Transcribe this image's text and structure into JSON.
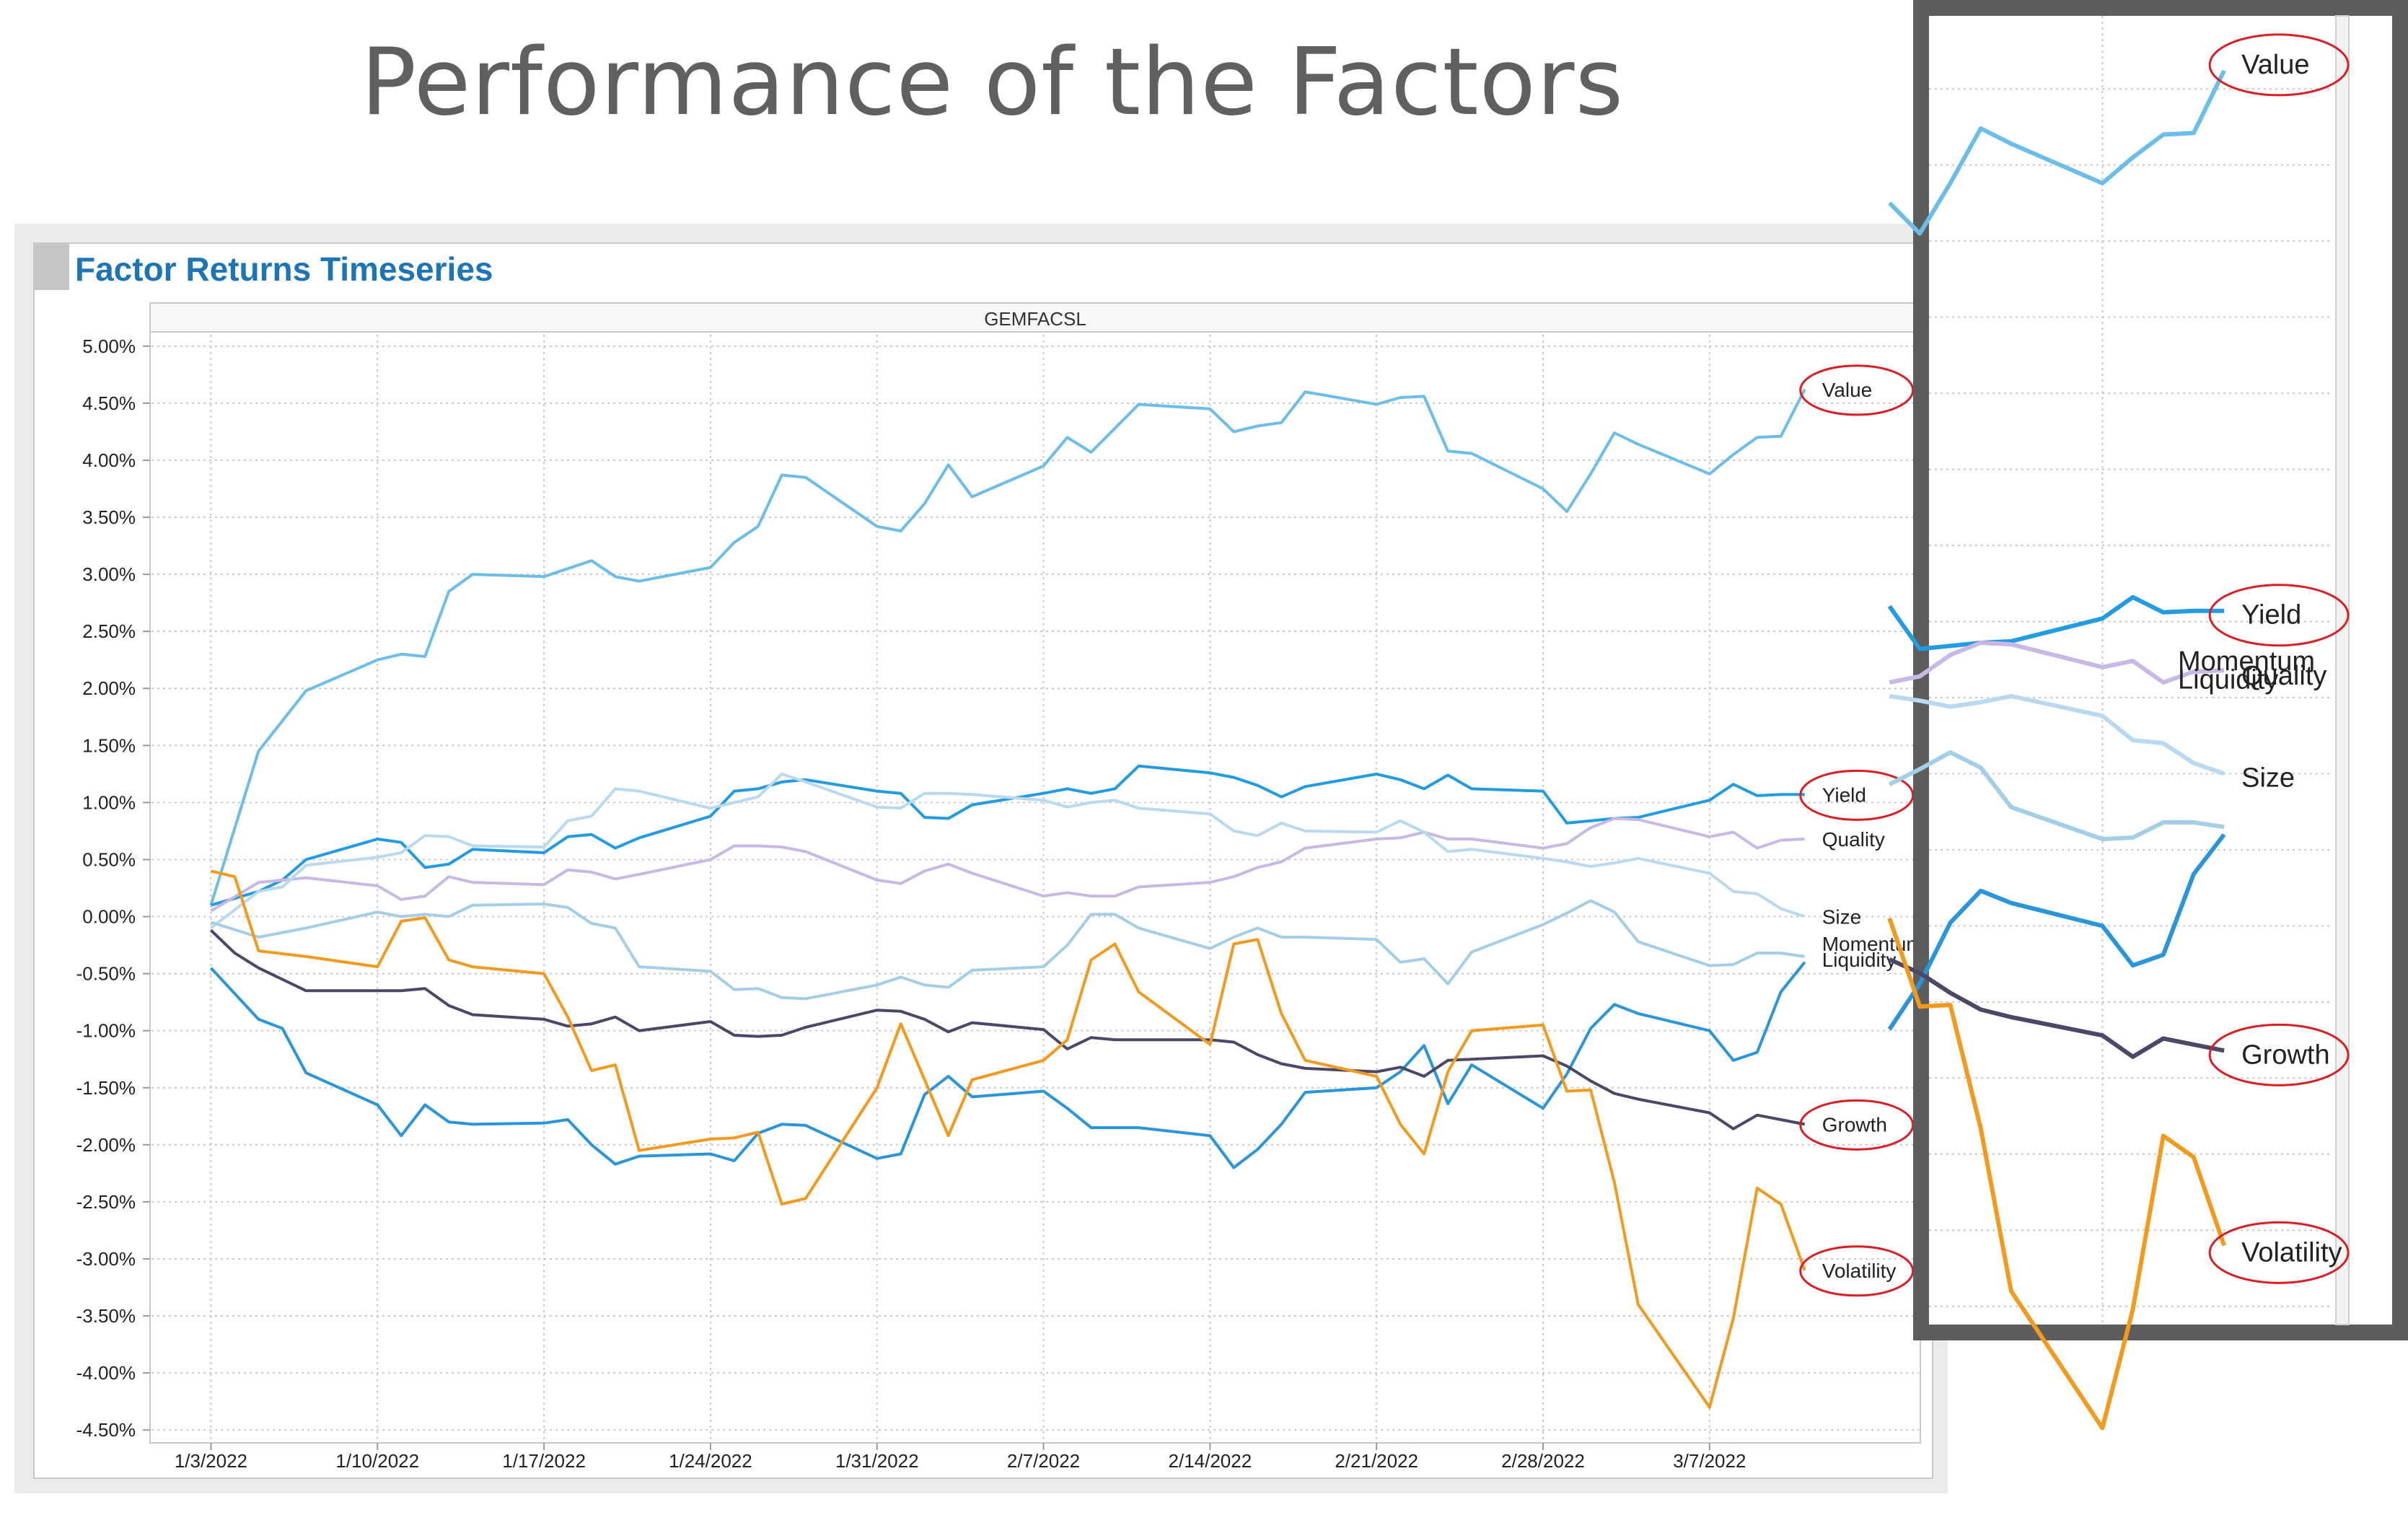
{
  "slide": {
    "title": "Performance of the Factors"
  },
  "panel": {
    "header": "Factor Returns Timeseries"
  },
  "colors": {
    "value": "#6cbde8",
    "yield": "#239be0",
    "quality": "#c7b9e4",
    "size": "#b8d9ee",
    "momentum": "#2a95d9",
    "liquidity": "#a4cde6",
    "growth": "#4b4867",
    "volatility": "#f29a1e",
    "annotation": "#d81f26",
    "grid": "#c9c9c9"
  },
  "chart_data": {
    "type": "line",
    "title": "GEMFACSL",
    "xlabel": "",
    "ylabel": "",
    "ylim": [
      -4.6,
      5.1
    ],
    "y_ticks": [
      "5.00%",
      "4.50%",
      "4.00%",
      "3.50%",
      "3.00%",
      "2.50%",
      "2.00%",
      "1.50%",
      "1.00%",
      "0.50%",
      "0.00%",
      "-0.50%",
      "-1.00%",
      "-1.50%",
      "-2.00%",
      "-2.50%",
      "-3.00%",
      "-3.50%",
      "-4.00%",
      "-4.50%"
    ],
    "y_tick_values": [
      5.0,
      4.5,
      4.0,
      3.5,
      3.0,
      2.5,
      2.0,
      1.5,
      1.0,
      0.5,
      0.0,
      -0.5,
      -1.0,
      -1.5,
      -2.0,
      -2.5,
      -3.0,
      -3.5,
      -4.0,
      -4.5
    ],
    "x_ticks": [
      "1/3/2022",
      "1/10/2022",
      "1/17/2022",
      "1/24/2022",
      "1/31/2022",
      "2/7/2022",
      "2/14/2022",
      "2/21/2022",
      "2/28/2022",
      "3/7/2022"
    ],
    "x_tick_values": [
      0,
      7,
      14,
      21,
      28,
      35,
      42,
      49,
      56,
      63
    ],
    "xlim": [
      -2.5,
      71.8
    ],
    "series": [
      {
        "name": "Value",
        "key": "value",
        "x": [
          0,
          2,
          4,
          7,
          8,
          9,
          10,
          11,
          14,
          15,
          16,
          17,
          18,
          21,
          22,
          23,
          24,
          25,
          28,
          29,
          30,
          31,
          32,
          35,
          36,
          37,
          38,
          39,
          42,
          43,
          44,
          45,
          46,
          49,
          50,
          51,
          52,
          53,
          56,
          57,
          58,
          59,
          60,
          63,
          64,
          65,
          66,
          67
        ],
        "values": [
          0.1,
          1.45,
          1.98,
          2.25,
          2.3,
          2.28,
          2.85,
          3.0,
          2.98,
          3.05,
          3.12,
          2.98,
          2.94,
          3.06,
          3.28,
          3.42,
          3.87,
          3.85,
          3.42,
          3.38,
          3.62,
          3.96,
          3.68,
          3.95,
          4.2,
          4.07,
          4.28,
          4.49,
          4.45,
          4.25,
          4.3,
          4.33,
          4.6,
          4.49,
          4.55,
          4.56,
          4.08,
          4.06,
          3.75,
          3.55,
          3.88,
          4.24,
          4.14,
          3.88,
          4.05,
          4.2,
          4.21,
          4.62
        ]
      },
      {
        "name": "Yield",
        "key": "yield",
        "x": [
          0,
          2,
          3,
          4,
          7,
          8,
          9,
          10,
          11,
          14,
          15,
          16,
          17,
          18,
          21,
          22,
          23,
          24,
          25,
          28,
          29,
          30,
          31,
          32,
          35,
          36,
          37,
          38,
          39,
          42,
          43,
          44,
          45,
          46,
          49,
          50,
          51,
          52,
          53,
          56,
          57,
          58,
          59,
          60,
          63,
          64,
          65,
          66,
          67
        ],
        "values": [
          0.1,
          0.22,
          0.32,
          0.5,
          0.68,
          0.65,
          0.43,
          0.46,
          0.59,
          0.56,
          0.7,
          0.72,
          0.6,
          0.69,
          0.88,
          1.1,
          1.12,
          1.18,
          1.2,
          1.1,
          1.08,
          0.87,
          0.86,
          0.98,
          1.08,
          1.12,
          1.08,
          1.12,
          1.32,
          1.26,
          1.22,
          1.15,
          1.05,
          1.14,
          1.25,
          1.2,
          1.12,
          1.24,
          1.12,
          1.1,
          0.82,
          0.84,
          0.86,
          0.87,
          1.02,
          1.16,
          1.06,
          1.07,
          1.07
        ]
      },
      {
        "name": "Quality",
        "key": "quality",
        "x": [
          0,
          2,
          4,
          7,
          8,
          9,
          10,
          11,
          14,
          15,
          16,
          17,
          18,
          21,
          22,
          23,
          24,
          25,
          28,
          29,
          30,
          31,
          32,
          35,
          36,
          37,
          38,
          39,
          42,
          43,
          44,
          45,
          46,
          49,
          50,
          51,
          52,
          53,
          56,
          57,
          58,
          59,
          60,
          63,
          64,
          65,
          66,
          67
        ],
        "values": [
          0.05,
          0.3,
          0.34,
          0.27,
          0.15,
          0.18,
          0.35,
          0.3,
          0.28,
          0.41,
          0.39,
          0.33,
          0.37,
          0.5,
          0.62,
          0.62,
          0.61,
          0.57,
          0.32,
          0.29,
          0.4,
          0.46,
          0.38,
          0.18,
          0.21,
          0.18,
          0.18,
          0.26,
          0.3,
          0.35,
          0.43,
          0.48,
          0.6,
          0.68,
          0.69,
          0.74,
          0.68,
          0.68,
          0.6,
          0.64,
          0.78,
          0.86,
          0.85,
          0.7,
          0.74,
          0.6,
          0.67,
          0.68
        ]
      },
      {
        "name": "Size",
        "key": "size",
        "x": [
          0,
          2,
          3,
          4,
          7,
          8,
          9,
          10,
          11,
          14,
          15,
          16,
          17,
          18,
          21,
          22,
          23,
          24,
          25,
          28,
          29,
          30,
          31,
          32,
          35,
          36,
          37,
          38,
          39,
          42,
          43,
          44,
          45,
          46,
          49,
          50,
          51,
          52,
          53,
          56,
          57,
          58,
          59,
          60,
          63,
          64,
          65,
          66,
          67
        ],
        "values": [
          -0.1,
          0.22,
          0.26,
          0.45,
          0.52,
          0.56,
          0.71,
          0.7,
          0.62,
          0.61,
          0.84,
          0.88,
          1.12,
          1.1,
          0.95,
          1.0,
          1.05,
          1.25,
          1.18,
          0.96,
          0.95,
          1.08,
          1.08,
          1.07,
          1.02,
          0.96,
          1.0,
          1.02,
          0.95,
          0.9,
          0.75,
          0.71,
          0.82,
          0.75,
          0.74,
          0.84,
          0.74,
          0.57,
          0.59,
          0.51,
          0.48,
          0.44,
          0.47,
          0.51,
          0.38,
          0.22,
          0.2,
          0.07,
          0.0
        ]
      },
      {
        "name": "Momentum",
        "key": "momentum",
        "x": [
          0,
          2,
          3,
          4,
          7,
          8,
          9,
          10,
          11,
          14,
          15,
          16,
          17,
          18,
          21,
          22,
          23,
          24,
          25,
          28,
          29,
          30,
          31,
          32,
          35,
          36,
          37,
          38,
          39,
          42,
          43,
          44,
          45,
          46,
          49,
          50,
          51,
          52,
          53,
          56,
          57,
          58,
          59,
          60,
          63,
          64,
          65,
          66,
          67
        ],
        "values": [
          -0.45,
          -0.9,
          -0.98,
          -1.37,
          -1.65,
          -1.92,
          -1.65,
          -1.8,
          -1.82,
          -1.81,
          -1.78,
          -2.0,
          -2.17,
          -2.1,
          -2.08,
          -2.14,
          -1.9,
          -1.82,
          -1.83,
          -2.12,
          -2.08,
          -1.56,
          -1.4,
          -1.58,
          -1.53,
          -1.68,
          -1.85,
          -1.85,
          -1.85,
          -1.92,
          -2.2,
          -2.04,
          -1.82,
          -1.54,
          -1.5,
          -1.36,
          -1.13,
          -1.64,
          -1.3,
          -1.68,
          -1.38,
          -0.98,
          -0.77,
          -0.85,
          -1.0,
          -1.26,
          -1.19,
          -0.66,
          -0.4
        ]
      },
      {
        "name": "Liquidity",
        "key": "liquidity",
        "x": [
          0,
          2,
          4,
          7,
          8,
          9,
          10,
          11,
          14,
          15,
          16,
          17,
          18,
          21,
          22,
          23,
          24,
          25,
          28,
          29,
          30,
          31,
          32,
          35,
          36,
          37,
          38,
          39,
          42,
          43,
          44,
          45,
          46,
          49,
          50,
          51,
          52,
          53,
          56,
          57,
          58,
          59,
          60,
          63,
          64,
          65,
          66,
          67
        ],
        "values": [
          -0.05,
          -0.18,
          -0.1,
          0.04,
          0.0,
          0.02,
          0.0,
          0.1,
          0.11,
          0.08,
          -0.06,
          -0.1,
          -0.44,
          -0.48,
          -0.64,
          -0.63,
          -0.71,
          -0.72,
          -0.6,
          -0.53,
          -0.6,
          -0.62,
          -0.47,
          -0.44,
          -0.25,
          0.02,
          0.02,
          -0.1,
          -0.28,
          -0.18,
          -0.1,
          -0.18,
          -0.18,
          -0.2,
          -0.4,
          -0.37,
          -0.59,
          -0.31,
          -0.07,
          0.03,
          0.14,
          0.04,
          -0.22,
          -0.43,
          -0.42,
          -0.32,
          -0.32,
          -0.35
        ]
      },
      {
        "name": "Growth",
        "key": "growth",
        "x": [
          0,
          1,
          2,
          3,
          4,
          7,
          8,
          9,
          10,
          11,
          14,
          15,
          16,
          17,
          18,
          21,
          22,
          23,
          24,
          25,
          28,
          29,
          30,
          31,
          32,
          35,
          36,
          37,
          38,
          39,
          42,
          43,
          44,
          45,
          46,
          49,
          50,
          51,
          52,
          53,
          56,
          57,
          58,
          59,
          60,
          63,
          64,
          65,
          66,
          67
        ],
        "values": [
          -0.12,
          -0.32,
          -0.45,
          -0.55,
          -0.65,
          -0.65,
          -0.65,
          -0.63,
          -0.78,
          -0.86,
          -0.9,
          -0.96,
          -0.94,
          -0.88,
          -1.0,
          -0.92,
          -1.04,
          -1.05,
          -1.04,
          -0.97,
          -0.82,
          -0.83,
          -0.9,
          -1.01,
          -0.93,
          -0.99,
          -1.16,
          -1.06,
          -1.08,
          -1.08,
          -1.08,
          -1.1,
          -1.21,
          -1.29,
          -1.33,
          -1.36,
          -1.32,
          -1.4,
          -1.26,
          -1.25,
          -1.22,
          -1.31,
          -1.44,
          -1.55,
          -1.6,
          -1.72,
          -1.86,
          -1.74,
          -1.78,
          -1.82
        ]
      },
      {
        "name": "Volatility",
        "key": "volatility",
        "x": [
          0,
          1,
          2,
          4,
          7,
          8,
          9,
          10,
          11,
          14,
          15,
          16,
          17,
          18,
          21,
          22,
          23,
          24,
          25,
          28,
          29,
          30,
          31,
          32,
          35,
          36,
          37,
          38,
          39,
          42,
          43,
          44,
          45,
          46,
          49,
          50,
          51,
          52,
          53,
          56,
          57,
          58,
          59,
          60,
          63,
          64,
          65,
          66,
          67
        ],
        "values": [
          0.4,
          0.35,
          -0.3,
          -0.35,
          -0.44,
          -0.04,
          -0.01,
          -0.38,
          -0.44,
          -0.5,
          -0.88,
          -1.35,
          -1.3,
          -2.05,
          -1.95,
          -1.94,
          -1.89,
          -2.52,
          -2.47,
          -1.5,
          -0.94,
          -1.43,
          -1.92,
          -1.43,
          -1.26,
          -1.08,
          -0.38,
          -0.24,
          -0.66,
          -1.12,
          -0.24,
          -0.2,
          -0.85,
          -1.26,
          -1.4,
          -1.82,
          -2.08,
          -1.36,
          -1.0,
          -0.95,
          -1.53,
          -1.52,
          -2.33,
          -3.4,
          -4.3,
          -3.52,
          -2.38,
          -2.52,
          -3.1
        ]
      }
    ],
    "series_labels": [
      "Value",
      "Yield",
      "Quality",
      "Size",
      "Momentum",
      "Liquidity",
      "Growth",
      "Volatility"
    ],
    "annotated": [
      "Value",
      "Yield",
      "Growth",
      "Volatility"
    ]
  },
  "inset": {
    "description_free": true,
    "labels": [
      "Value",
      "Yield",
      "Quality",
      "Size",
      "Momentum",
      "Liquidity",
      "Growth",
      "Volatility"
    ],
    "annotated": [
      "Value",
      "Yield",
      "Growth",
      "Volatility"
    ]
  }
}
